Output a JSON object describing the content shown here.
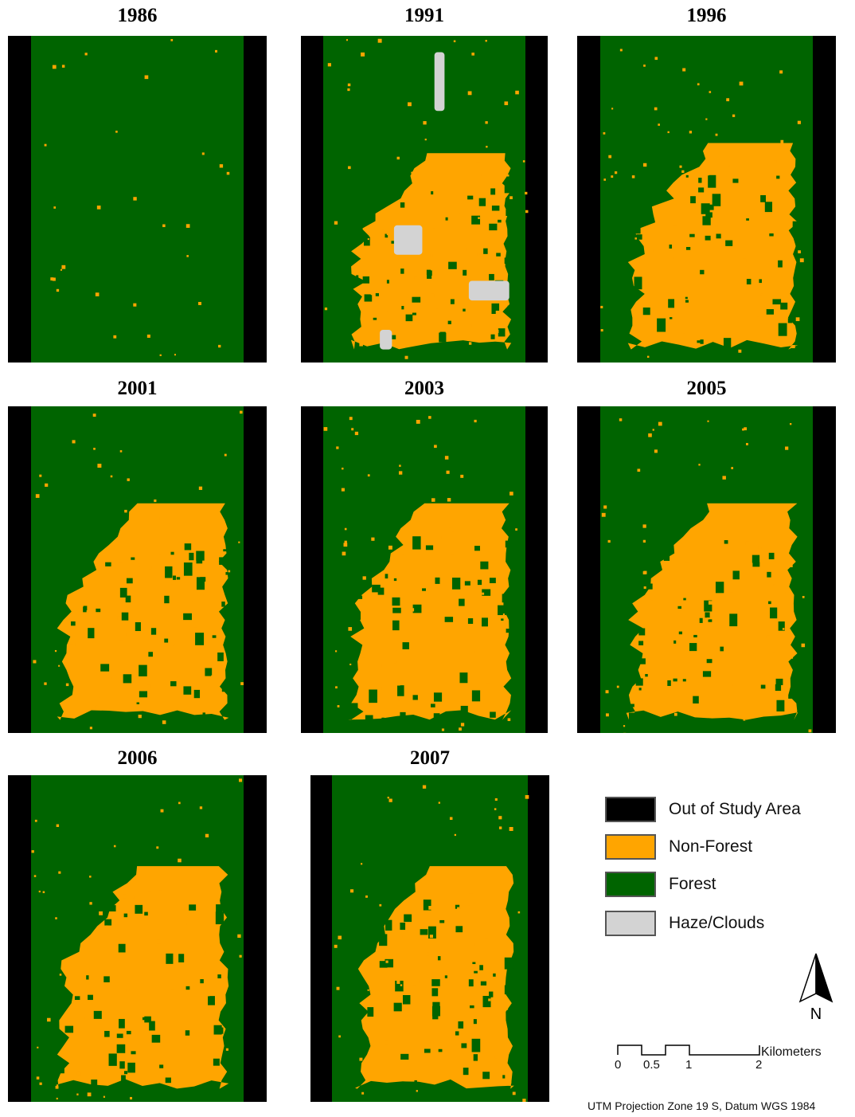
{
  "colors": {
    "out_of_study_area": "#000000",
    "non_forest": "#FFA500",
    "forest": "#006400",
    "haze_clouds": "#D3D3D3"
  },
  "panels": [
    {
      "year": "1986",
      "nonforest_extent": 0.0
    },
    {
      "year": "1991",
      "nonforest_extent": 0.55,
      "haze": true
    },
    {
      "year": "1996",
      "nonforest_extent": 0.6
    },
    {
      "year": "2001",
      "nonforest_extent": 0.65
    },
    {
      "year": "2003",
      "nonforest_extent": 0.65
    },
    {
      "year": "2005",
      "nonforest_extent": 0.65
    },
    {
      "year": "2006",
      "nonforest_extent": 0.68
    },
    {
      "year": "2007",
      "nonforest_extent": 0.68
    }
  ],
  "legend": {
    "items": [
      {
        "label": "Out of Study Area",
        "color": "#000000"
      },
      {
        "label": "Non-Forest",
        "color": "#FFA500"
      },
      {
        "label": "Forest",
        "color": "#006400"
      },
      {
        "label": "Haze/Clouds",
        "color": "#D3D3D3"
      }
    ]
  },
  "north_arrow": {
    "label": "N",
    "icon": "north-arrow-icon"
  },
  "scale_bar": {
    "ticks": [
      "0",
      "0.5",
      "1",
      "2"
    ],
    "unit": "Kilometers"
  },
  "projection_note": "UTM Projection Zone 19 S, Datum WGS 1984"
}
